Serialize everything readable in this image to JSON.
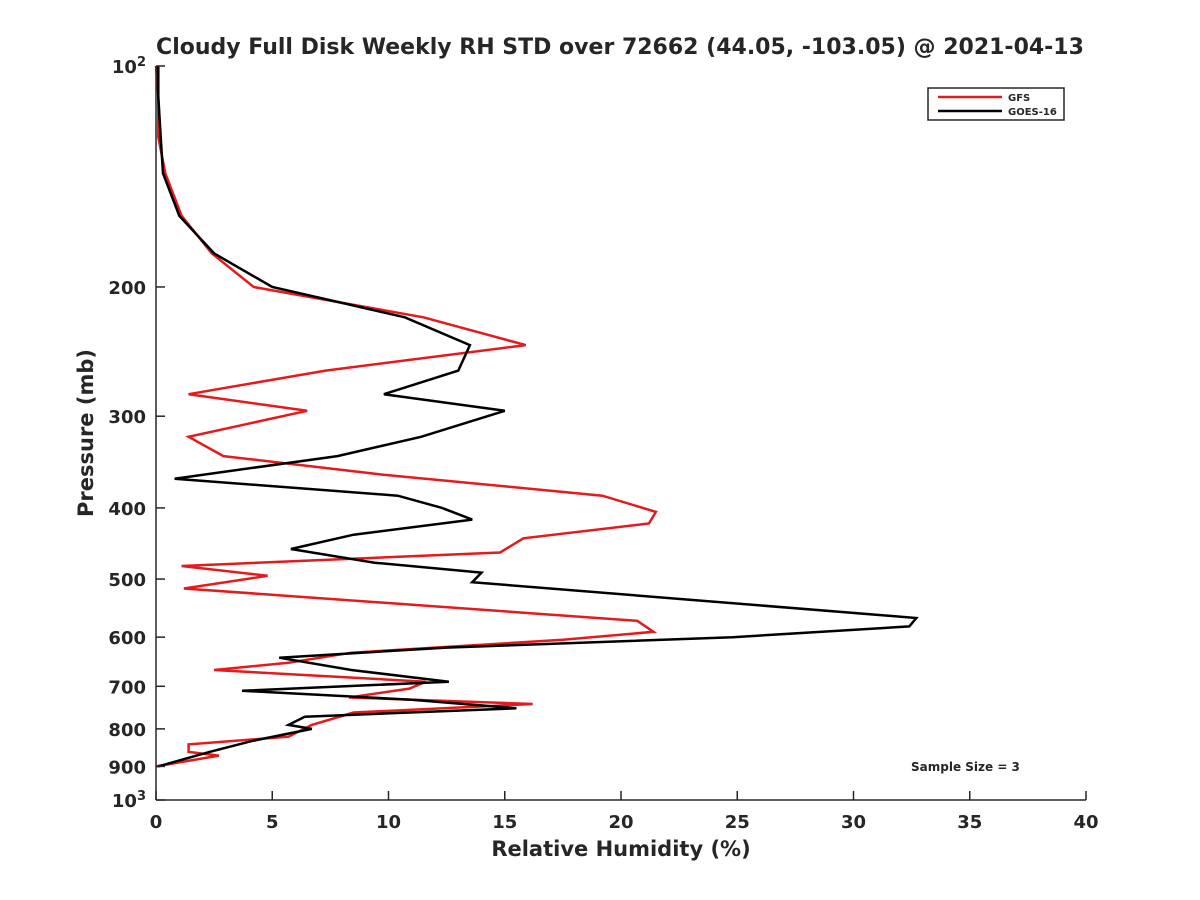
{
  "chart_data": {
    "type": "line",
    "title": "Cloudy Full Disk Weekly RH STD over 72662 (44.05, -103.05) @ 2021-04-13",
    "xlabel": "Relative Humidity (%)",
    "ylabel": "Pressure (mb)",
    "xlim": [
      0,
      40
    ],
    "ylim": [
      100,
      1000
    ],
    "y_scale": "log",
    "y_reversed": true,
    "grid": false,
    "legend_position": "top-right",
    "x_ticks": [
      0,
      5,
      10,
      15,
      20,
      25,
      30,
      35,
      40
    ],
    "y_ticks": [
      {
        "value": 100,
        "base": "10",
        "exp": "2"
      },
      {
        "value": 200,
        "label": "200"
      },
      {
        "value": 300,
        "label": "300"
      },
      {
        "value": 400,
        "label": "400"
      },
      {
        "value": 500,
        "label": "500"
      },
      {
        "value": 600,
        "label": "600"
      },
      {
        "value": 700,
        "label": "700"
      },
      {
        "value": 800,
        "label": "800"
      },
      {
        "value": 900,
        "label": "900"
      },
      {
        "value": 1000,
        "base": "10",
        "exp": "3"
      }
    ],
    "annotation": "Sample Size = 3",
    "series": [
      {
        "name": "GFS",
        "color": "#e41a1c",
        "x": [
          0.0,
          0.1,
          0.1,
          0.4,
          1.1,
          2.4,
          4.2,
          11.5,
          15.9,
          7.3,
          1.4,
          6.5,
          1.4,
          2.9,
          9.6,
          19.2,
          21.5,
          21.2,
          15.8,
          14.8,
          1.1,
          4.8,
          1.2,
          20.7,
          21.4,
          17.5,
          8.4,
          5.7,
          2.5,
          11.6,
          10.9,
          8.3,
          16.2,
          8.5,
          6.7,
          5.7,
          1.4,
          1.4,
          2.7,
          0.0
        ],
        "y": [
          100,
          110,
          125,
          140,
          160,
          180,
          200,
          220,
          240,
          260,
          280,
          295,
          320,
          340,
          360,
          385,
          405,
          420,
          440,
          460,
          480,
          495,
          515,
          570,
          590,
          605,
          630,
          650,
          665,
          690,
          705,
          725,
          740,
          760,
          790,
          820,
          840,
          860,
          870,
          900
        ]
      },
      {
        "name": "GOES-16",
        "color": "#000000",
        "x": [
          0.1,
          0.1,
          0.2,
          0.3,
          1.0,
          2.5,
          5.0,
          10.7,
          13.5,
          13.0,
          9.8,
          15.0,
          11.4,
          7.8,
          0.8,
          10.4,
          12.3,
          13.6,
          8.5,
          5.8,
          9.4,
          14.0,
          13.6,
          32.7,
          32.4,
          24.8,
          12.5,
          5.3,
          8.4,
          12.6,
          3.7,
          11.0,
          15.5,
          6.4,
          5.7,
          6.7,
          4.2,
          2.3,
          0.1
        ],
        "y": [
          100,
          110,
          125,
          140,
          160,
          180,
          200,
          220,
          240,
          260,
          280,
          295,
          320,
          340,
          365,
          385,
          400,
          415,
          435,
          455,
          475,
          490,
          505,
          565,
          580,
          600,
          620,
          640,
          665,
          690,
          710,
          730,
          750,
          770,
          790,
          800,
          830,
          860,
          900
        ]
      }
    ]
  }
}
